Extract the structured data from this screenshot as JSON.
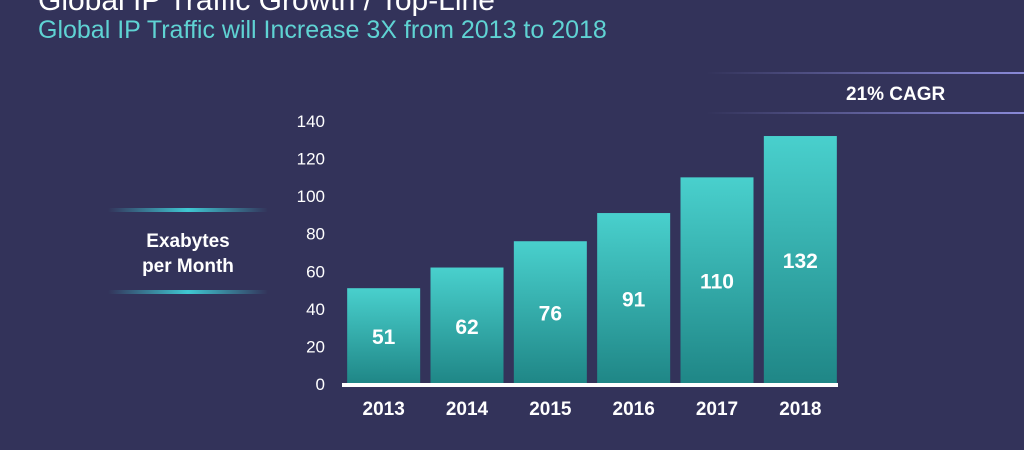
{
  "slide": {
    "title": "Global IP Traffic Growth / Top-Line",
    "subtitle": "Global IP Traffic will Increase 3X from 2013 to 2018",
    "cagr_label": "21% CAGR",
    "unit_label_line1": "Exabytes",
    "unit_label_line2": "per Month"
  },
  "colors": {
    "background": "#33335a",
    "bar_top": "#49d0cd",
    "bar_bottom": "#1f8686",
    "axis": "#ffffff",
    "subtitle": "#5fd3d3"
  },
  "chart_data": {
    "type": "bar",
    "categories": [
      "2013",
      "2014",
      "2015",
      "2016",
      "2017",
      "2018"
    ],
    "values": [
      51,
      62,
      76,
      91,
      110,
      132
    ],
    "data_labels": [
      "51",
      "62",
      "76",
      "91",
      "110",
      "132"
    ],
    "ylim": [
      0,
      140
    ],
    "yticks": [
      0,
      20,
      40,
      60,
      80,
      100,
      120,
      140
    ],
    "ylabel": "Exabytes per Month",
    "xlabel": "",
    "grid": false,
    "legend": "none"
  }
}
